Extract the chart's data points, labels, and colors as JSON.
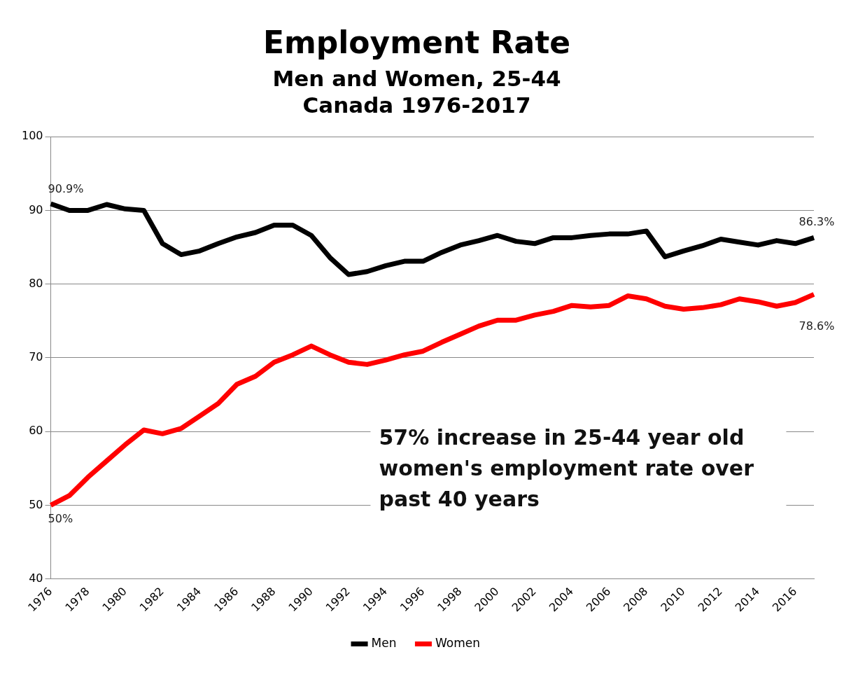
{
  "chart_data": {
    "type": "line",
    "title": "Employment Rate",
    "subtitle": "Men and Women, 25-44\nCanada 1976-2017",
    "categories": [
      "1976",
      null,
      "1978",
      null,
      "1980",
      null,
      "1982",
      null,
      "1984",
      null,
      "1986",
      null,
      "1988",
      null,
      "1990",
      null,
      "1992",
      null,
      "1994",
      null,
      "1996",
      null,
      "1998",
      null,
      "2000",
      null,
      "2002",
      null,
      "2004",
      null,
      "2006",
      null,
      "2008",
      null,
      "2010",
      null,
      "2012",
      null,
      "2014",
      null,
      "2016",
      null
    ],
    "series": [
      {
        "name": "Men",
        "color": "#000000",
        "values": [
          90.9,
          90.0,
          90.0,
          90.8,
          90.2,
          90.0,
          85.5,
          84.0,
          84.5,
          85.5,
          86.4,
          87.0,
          88.0,
          88.0,
          86.6,
          83.6,
          81.3,
          81.7,
          82.5,
          83.1,
          83.1,
          84.3,
          85.3,
          85.9,
          86.6,
          85.8,
          85.5,
          86.3,
          86.3,
          86.6,
          86.8,
          86.8,
          87.2,
          83.7,
          84.5,
          85.2,
          86.1,
          85.7,
          85.3,
          85.9,
          85.5,
          86.3
        ],
        "value_labels": [
          "90.9%",
          null,
          null,
          null,
          null,
          null,
          null,
          null,
          null,
          null,
          null,
          null,
          null,
          null,
          null,
          null,
          null,
          null,
          null,
          null,
          null,
          null,
          null,
          null,
          null,
          null,
          null,
          null,
          null,
          null,
          null,
          null,
          null,
          null,
          null,
          null,
          null,
          null,
          null,
          null,
          null,
          "86.3%"
        ]
      },
      {
        "name": "Women",
        "color": "#ff0000",
        "values": [
          50.0,
          51.3,
          53.8,
          56.0,
          58.2,
          60.2,
          59.7,
          60.4,
          62.1,
          63.8,
          66.4,
          67.5,
          69.4,
          70.4,
          71.6,
          70.4,
          69.4,
          69.1,
          69.7,
          70.4,
          70.9,
          72.1,
          73.2,
          74.3,
          75.1,
          75.1,
          75.8,
          76.3,
          77.1,
          76.9,
          77.1,
          78.4,
          78.0,
          77.0,
          76.6,
          76.8,
          77.2,
          78.0,
          77.6,
          77.0,
          77.5,
          78.6
        ],
        "value_labels": [
          "50%",
          null,
          null,
          null,
          null,
          null,
          null,
          null,
          null,
          null,
          null,
          null,
          null,
          null,
          null,
          null,
          null,
          null,
          null,
          null,
          null,
          null,
          null,
          null,
          null,
          null,
          null,
          null,
          null,
          null,
          null,
          null,
          null,
          null,
          null,
          null,
          null,
          null,
          null,
          null,
          null,
          "78.6%"
        ]
      }
    ],
    "ylim": [
      40,
      100
    ],
    "yticks": [
      40,
      50,
      60,
      70,
      80,
      90,
      100
    ],
    "grid": "y",
    "legend": "bottom",
    "marker": "none",
    "line_style": "solid",
    "annotations": [
      "57% increase in 25-44 year old women's employment rate over past 40 years"
    ]
  }
}
